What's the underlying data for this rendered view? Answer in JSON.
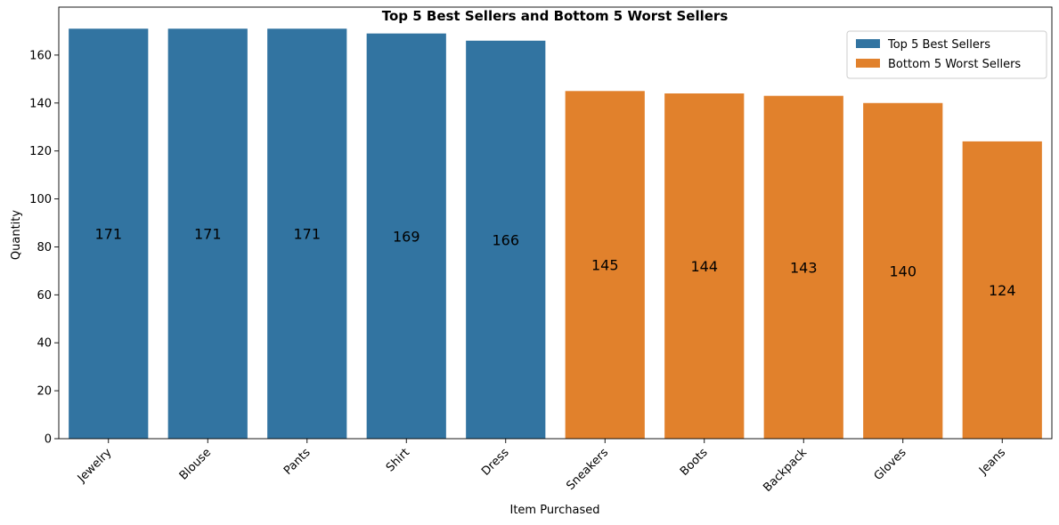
{
  "chart_data": {
    "type": "bar",
    "title": "Top 5 Best Sellers and Bottom 5 Worst Sellers",
    "xlabel": "Item Purchased",
    "ylabel": "Quantity",
    "ylim": [
      0,
      180
    ],
    "yticks": [
      0,
      20,
      40,
      60,
      80,
      100,
      120,
      140,
      160
    ],
    "grid": false,
    "legend_position": "top-right",
    "series": [
      {
        "name": "Top 5 Best Sellers",
        "color": "#3274a1",
        "categories": [
          "Jewelry",
          "Blouse",
          "Pants",
          "Shirt",
          "Dress"
        ],
        "values": [
          171,
          171,
          171,
          169,
          166
        ]
      },
      {
        "name": "Bottom 5 Worst Sellers",
        "color": "#e1812c",
        "categories": [
          "Sneakers",
          "Boots",
          "Backpack",
          "Gloves",
          "Jeans"
        ],
        "values": [
          145,
          144,
          143,
          140,
          124
        ]
      }
    ]
  }
}
